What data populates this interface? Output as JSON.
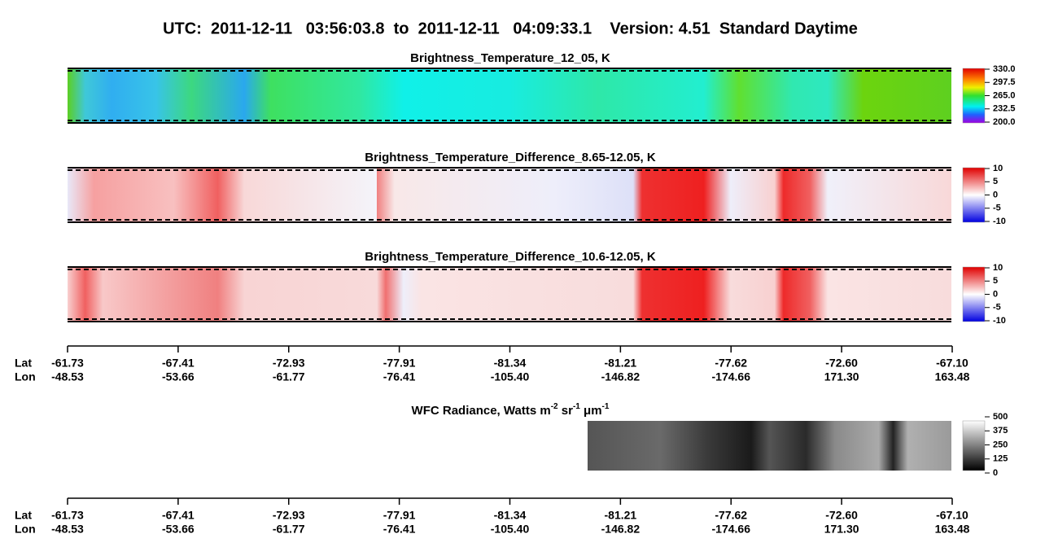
{
  "header": {
    "title": "UTC:  2011-12-11   03:56:03.8  to  2011-12-11   04:09:33.1    Version: 4.51  Standard Daytime"
  },
  "panels": [
    {
      "title": "Brightness_Temperature_12_05, K",
      "colorbar": [
        "330.0",
        "297.5",
        "265.0",
        "232.5",
        "200.0"
      ]
    },
    {
      "title": "Brightness_Temperature_Difference_8.65-12.05, K",
      "colorbar": [
        "10",
        "5",
        "0",
        "-5",
        "-10"
      ]
    },
    {
      "title": "Brightness_Temperature_Difference_10.6-12.05, K",
      "colorbar": [
        "10",
        "5",
        "0",
        "-5",
        "-10"
      ]
    }
  ],
  "axes": [
    {
      "row_labels": [
        "Lat",
        "Lon"
      ],
      "lat": [
        "-61.73",
        "-67.41",
        "-72.93",
        "-77.91",
        "-81.34",
        "-81.21",
        "-77.62",
        "-72.60",
        "-67.10"
      ],
      "lon": [
        "-48.53",
        "-53.66",
        "-61.77",
        "-76.41",
        "-105.40",
        "-146.82",
        "-174.66",
        "171.30",
        "163.48"
      ]
    },
    {
      "row_labels": [
        "Lat",
        "Lon"
      ],
      "lat": [
        "-61.73",
        "-67.41",
        "-72.93",
        "-77.91",
        "-81.34",
        "-81.21",
        "-77.62",
        "-72.60",
        "-67.10"
      ],
      "lon": [
        "-48.53",
        "-53.66",
        "-61.77",
        "-76.41",
        "-105.40",
        "-146.82",
        "-174.66",
        "171.30",
        "163.48"
      ]
    }
  ],
  "wfc": {
    "title_parts": [
      "WFC Radiance, Watts m",
      "-2",
      " sr",
      "-1",
      " μm",
      "-1"
    ],
    "colorbar": [
      "500",
      "375",
      "250",
      "125",
      "0"
    ]
  }
}
